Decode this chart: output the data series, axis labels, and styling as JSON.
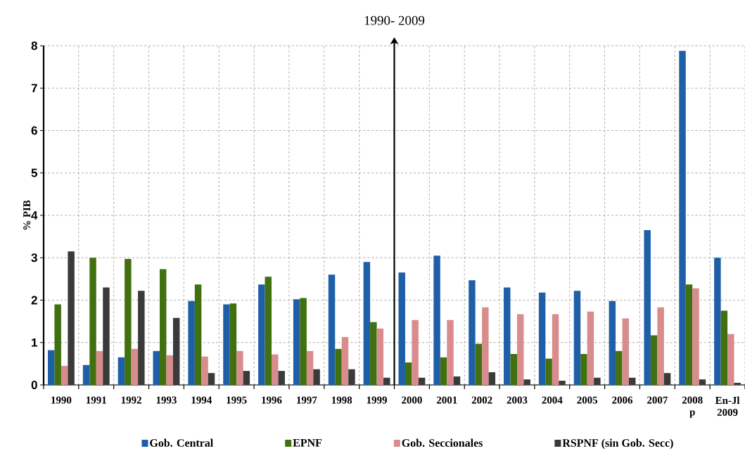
{
  "chart_data": {
    "type": "bar",
    "title": "1990- 2009",
    "ylabel": "% PIB",
    "categories": [
      "1990",
      "1991",
      "1992",
      "1993",
      "1994",
      "1995",
      "1996",
      "1997",
      "1998",
      "1999",
      "2000",
      "2001",
      "2002",
      "2003",
      "2004",
      "2005",
      "2006",
      "2007",
      "2008 p",
      "En-Jl 2009"
    ],
    "series": [
      {
        "name": "Gob. Central",
        "color": "#1f5fa8",
        "values": [
          0.82,
          0.47,
          0.65,
          0.8,
          1.98,
          1.9,
          2.37,
          2.02,
          2.6,
          2.9,
          2.65,
          3.05,
          2.47,
          2.3,
          2.18,
          2.22,
          1.98,
          3.65,
          7.88,
          3.0
        ]
      },
      {
        "name": "EPNF",
        "color": "#40700f",
        "values": [
          1.9,
          3.0,
          2.97,
          2.73,
          2.37,
          1.92,
          2.55,
          2.05,
          0.85,
          1.48,
          0.53,
          0.65,
          0.97,
          0.73,
          0.62,
          0.73,
          0.8,
          1.17,
          2.37,
          1.75
        ]
      },
      {
        "name": "Gob. Seccionales",
        "color": "#d98c8c",
        "values": [
          0.45,
          0.8,
          0.85,
          0.7,
          0.67,
          0.8,
          0.72,
          0.8,
          1.13,
          1.33,
          1.53,
          1.53,
          1.83,
          1.67,
          1.67,
          1.73,
          1.57,
          1.83,
          2.28,
          1.2
        ]
      },
      {
        "name": "RSPNF (sin Gob. Secc)",
        "color": "#3a3a3a",
        "values": [
          3.15,
          2.3,
          2.22,
          1.58,
          0.28,
          0.33,
          0.33,
          0.37,
          0.37,
          0.17,
          0.17,
          0.2,
          0.3,
          0.13,
          0.1,
          0.17,
          0.17,
          0.28,
          0.13,
          0.05
        ]
      }
    ],
    "ylim": [
      0,
      8
    ],
    "yticks": [
      0,
      1,
      2,
      3,
      4,
      5,
      6,
      7,
      8
    ],
    "grid": true,
    "legend": "bottom"
  }
}
